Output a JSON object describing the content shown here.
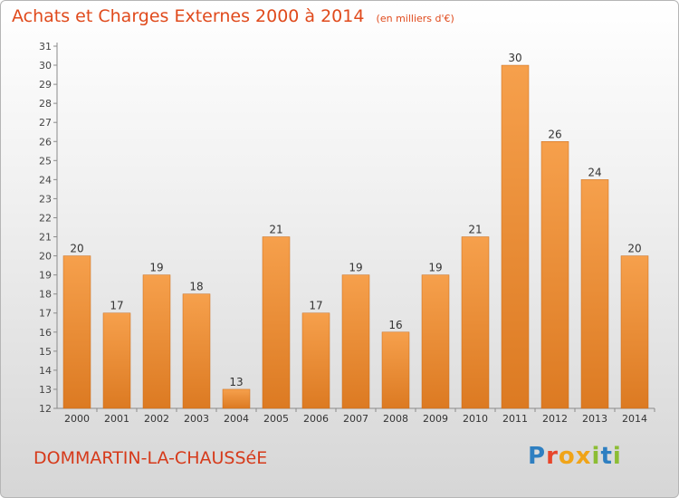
{
  "header": {
    "title": "Achats et Charges Externes 2000 à 2014",
    "subtitle": "(en milliers d'€)"
  },
  "footer": {
    "city": "DOMMARTIN-LA-CHAUSSéE",
    "logo": "Proxiti"
  },
  "colors": {
    "bar_light": "#f6a04c",
    "bar_dark": "#dc7a22",
    "title": "#e04a1c",
    "logo": [
      "#2e7fc1",
      "#e8452a",
      "#f0a418",
      "#f0a418",
      "#8cbd34",
      "#2e7fc1",
      "#8cbd34"
    ]
  },
  "chart_data": {
    "type": "bar",
    "title": "Achats et Charges Externes 2000 à 2014",
    "subtitle": "(en milliers d'€)",
    "categories": [
      "2000",
      "2001",
      "2002",
      "2003",
      "2004",
      "2005",
      "2006",
      "2007",
      "2008",
      "2009",
      "2010",
      "2011",
      "2012",
      "2013",
      "2014"
    ],
    "values": [
      20,
      17,
      19,
      18,
      13,
      21,
      17,
      19,
      16,
      19,
      21,
      30,
      26,
      24,
      20
    ],
    "ylim": [
      12,
      31
    ],
    "yticks": [
      12,
      13,
      14,
      15,
      16,
      17,
      18,
      19,
      20,
      21,
      22,
      23,
      24,
      25,
      26,
      27,
      28,
      29,
      30,
      31
    ],
    "grid": false,
    "data_labels": true,
    "legend": "none"
  }
}
